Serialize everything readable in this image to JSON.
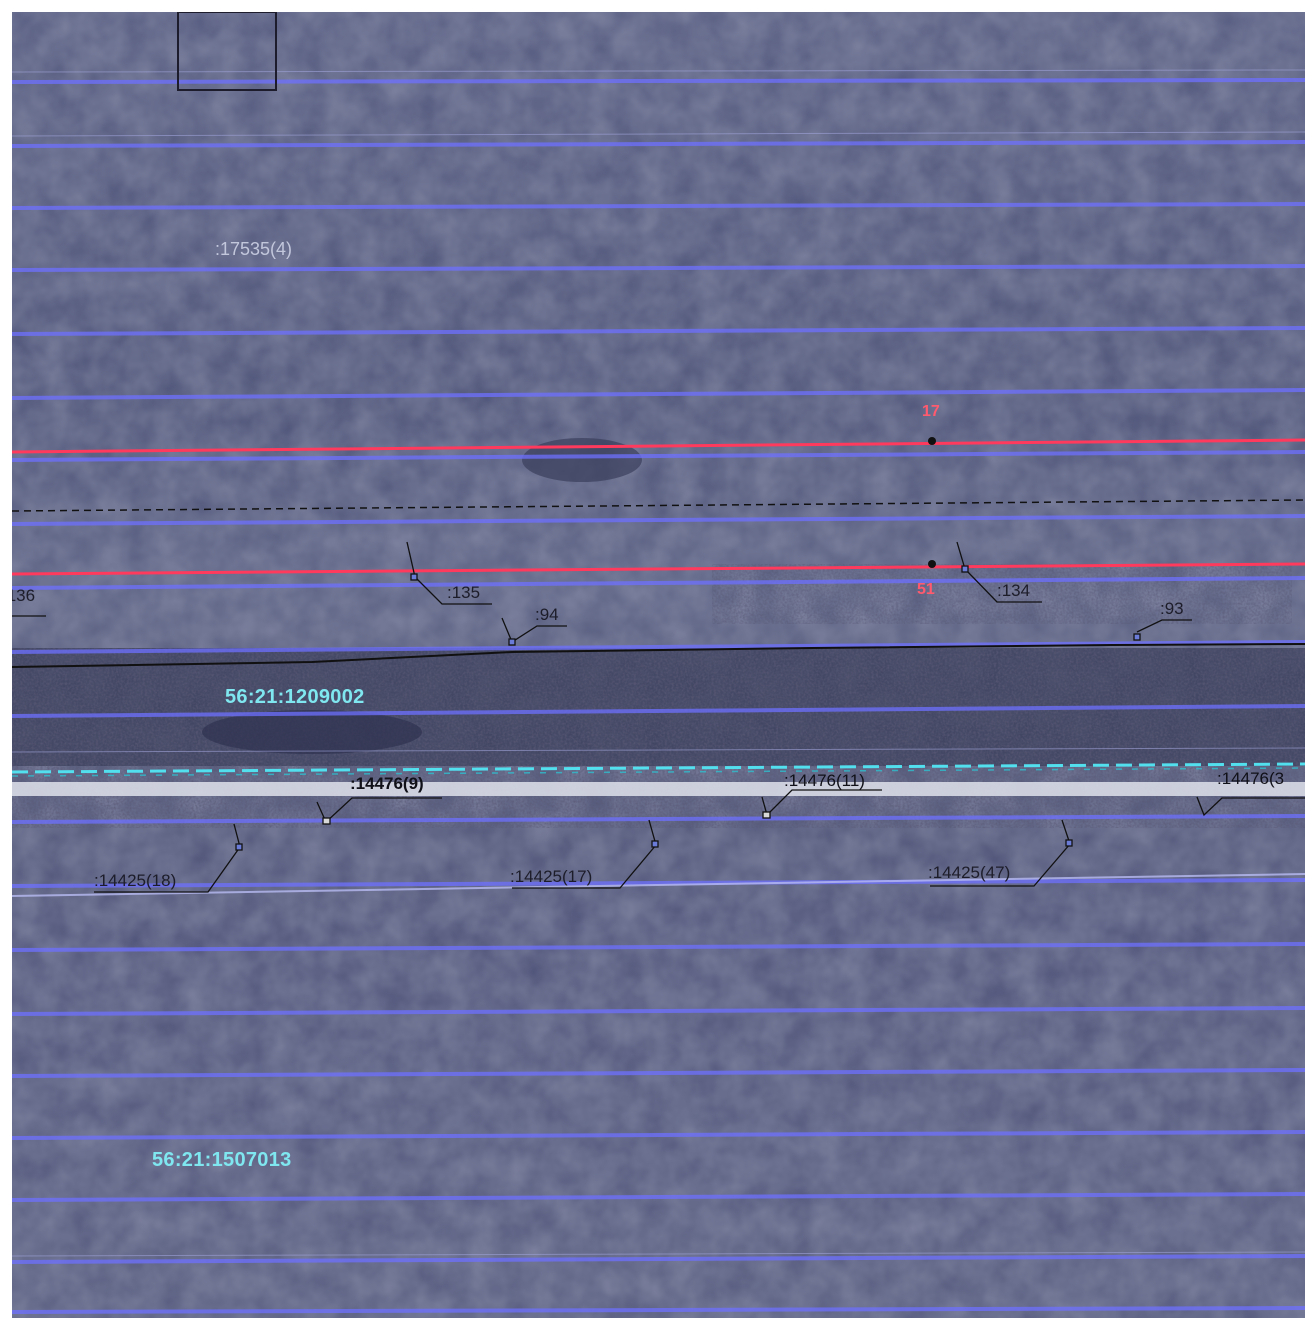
{
  "map": {
    "blocks": {
      "north": "56:21:1209002",
      "south": "56:21:1507013"
    },
    "parcels": {
      "p17535_4": ":17535(4)",
      "p136": ":136",
      "p135": ":135",
      "p94": ":94",
      "p134": ":134",
      "p93": ":93",
      "p14476_9": ":14476(9)",
      "p14476_11": ":14476(11)",
      "p14476_3": ":14476(3",
      "p14425_18": ":14425(18)",
      "p14425_17": ":14425(17)",
      "p14425_47": ":14425(47)"
    },
    "points": {
      "pt17": "17",
      "pt51": "51"
    },
    "colors": {
      "imagery": "#535879",
      "scan_lines": "#6d70ff",
      "boundary_red": "#ff3a5c",
      "block_label": "#7fe7ef",
      "dashed_cyan": "#52dfee",
      "road": "#d8dae6"
    }
  }
}
